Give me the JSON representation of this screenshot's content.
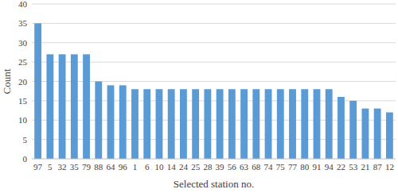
{
  "chart_data": {
    "type": "bar",
    "x_label": "Selected station no.",
    "y_label": "Count",
    "categories": [
      "97",
      "5",
      "32",
      "35",
      "79",
      "88",
      "64",
      "96",
      "1",
      "6",
      "10",
      "14",
      "24",
      "25",
      "28",
      "39",
      "56",
      "63",
      "68",
      "74",
      "75",
      "77",
      "80",
      "91",
      "94",
      "22",
      "53",
      "21",
      "87",
      "12"
    ],
    "values": [
      35,
      27,
      27,
      27,
      27,
      20,
      19,
      19,
      18,
      18,
      18,
      18,
      18,
      18,
      18,
      18,
      18,
      18,
      18,
      18,
      18,
      18,
      18,
      18,
      18,
      16,
      15,
      13,
      13,
      12
    ],
    "color": "#5b9bd5",
    "ylim": [
      0,
      40
    ],
    "yticks": [
      0,
      5,
      10,
      15,
      20,
      25,
      30,
      35,
      40
    ],
    "grid": true
  }
}
